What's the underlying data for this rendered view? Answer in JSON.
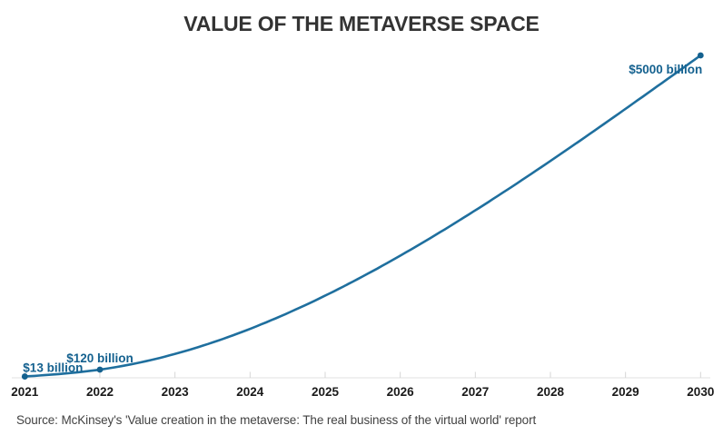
{
  "footer": {
    "source": "Source: McKinsey's 'Value creation in the metaverse: The real business of the virtual world' report"
  },
  "chart_data": {
    "type": "line",
    "title": "VALUE OF THE METAVERSE SPACE",
    "subtitle": "",
    "xlabel": "",
    "ylabel": "",
    "unit": "$ billion",
    "curve": "natural-spline",
    "grid": "off",
    "legend": "none",
    "x": [
      2021,
      2022,
      2030
    ],
    "values": [
      13,
      120,
      5000
    ],
    "points": [
      {
        "x": 2021,
        "y": 13,
        "label": "$13 billion"
      },
      {
        "x": 2022,
        "y": 120,
        "label": "$120 billion"
      },
      {
        "x": 2030,
        "y": 5000,
        "label": "$5000 billion"
      }
    ],
    "x_ticks": [
      2021,
      2022,
      2023,
      2024,
      2025,
      2026,
      2027,
      2028,
      2029,
      2030
    ],
    "xlim": [
      2021,
      2030
    ],
    "ylim": [
      0,
      5000
    ],
    "colors": {
      "line": "#1f6f9e",
      "point": "#14618f",
      "point_label": "#14618f",
      "axis": "#e0e0e0",
      "tick": "#d6d6d6",
      "tick_label": "#1a1a1a",
      "title": "#333333",
      "source": "#424242"
    }
  }
}
